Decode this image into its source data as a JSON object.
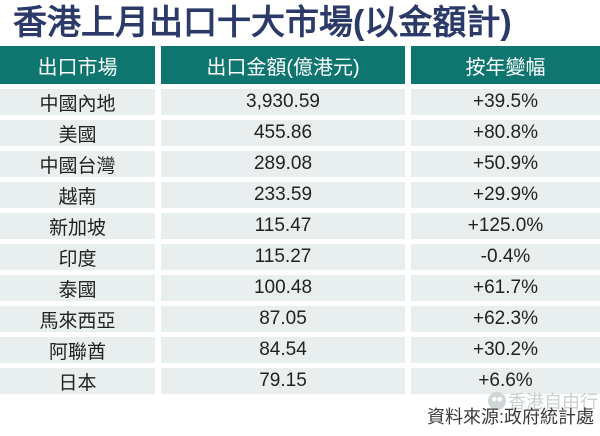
{
  "title": "香港上月出口十大市場(以金額計)",
  "table": {
    "headers": [
      "出口市場",
      "出口金額(億港元)",
      "按年變幅"
    ],
    "rows": [
      {
        "market": "中國內地",
        "amount": "3,930.59",
        "change": "+39.5%"
      },
      {
        "market": "美國",
        "amount": "455.86",
        "change": "+80.8%"
      },
      {
        "market": "中國台灣",
        "amount": "289.08",
        "change": "+50.9%"
      },
      {
        "market": "越南",
        "amount": "233.59",
        "change": "+29.9%"
      },
      {
        "market": "新加坡",
        "amount": "115.47",
        "change": "+125.0%"
      },
      {
        "market": "印度",
        "amount": "115.27",
        "change": "-0.4%"
      },
      {
        "market": "泰國",
        "amount": "100.48",
        "change": "+61.7%"
      },
      {
        "market": "馬來西亞",
        "amount": "87.05",
        "change": "+62.3%"
      },
      {
        "market": "阿聯酋",
        "amount": "84.54",
        "change": "+30.2%"
      },
      {
        "market": "日本",
        "amount": "79.15",
        "change": "+6.6%"
      }
    ]
  },
  "footer": {
    "source": "資料來源:政府統計處"
  },
  "watermark": {
    "icon": "wechat-icon",
    "text": "香港自由行"
  },
  "colors": {
    "title_text": "#2b3a68",
    "header_bg": "#0e756f",
    "header_text": "#ffffff",
    "row_bg": "#e9efee",
    "cell_text": "#222222",
    "source_text": "#3a3a3a",
    "watermark_text": "#c6cccd"
  },
  "chart_data": {
    "type": "table",
    "title": "香港上月出口十大市場(以金額計)",
    "columns": [
      "出口市場",
      "出口金額(億港元)",
      "按年變幅"
    ],
    "categories": [
      "中國內地",
      "美國",
      "中國台灣",
      "越南",
      "新加坡",
      "印度",
      "泰國",
      "馬來西亞",
      "阿聯酋",
      "日本"
    ],
    "series": [
      {
        "name": "出口金額(億港元)",
        "values": [
          3930.59,
          455.86,
          289.08,
          233.59,
          115.47,
          115.27,
          100.48,
          87.05,
          84.54,
          79.15
        ]
      },
      {
        "name": "按年變幅(%)",
        "values": [
          39.5,
          80.8,
          50.9,
          29.9,
          125.0,
          -0.4,
          61.7,
          62.3,
          30.2,
          6.6
        ]
      }
    ],
    "source": "政府統計處"
  }
}
